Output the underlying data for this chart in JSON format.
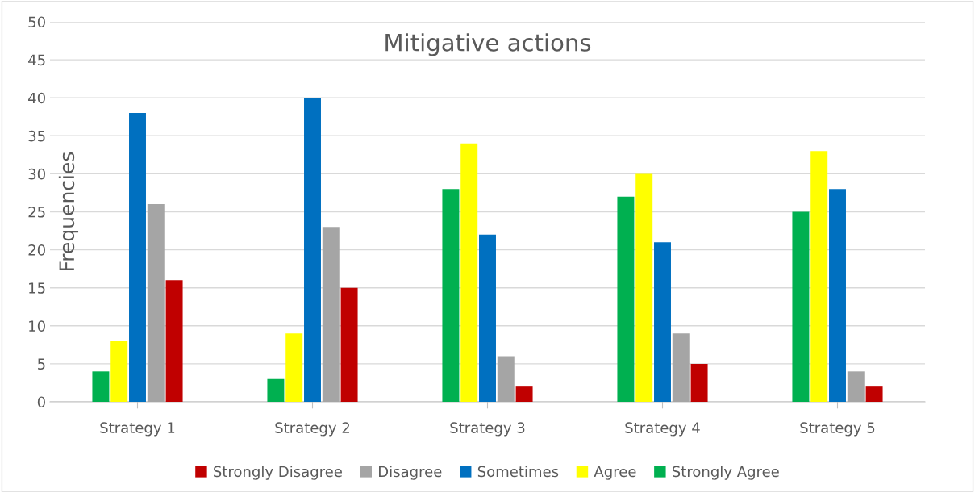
{
  "chart_data": {
    "type": "bar",
    "title": "Mitigative actions",
    "ylabel": "Frequencies",
    "categories": [
      "Strategy 1",
      "Strategy 2",
      "Strategy 3",
      "Strategy 4",
      "Strategy 5"
    ],
    "series": [
      {
        "name": "Strongly Agree",
        "color": "#00b050",
        "values": [
          4,
          3,
          28,
          27,
          25
        ]
      },
      {
        "name": "Agree",
        "color": "#ffff00",
        "values": [
          8,
          9,
          34,
          30,
          33
        ]
      },
      {
        "name": "Sometimes",
        "color": "#0070c0",
        "values": [
          38,
          40,
          22,
          21,
          28
        ]
      },
      {
        "name": "Disagree",
        "color": "#a5a5a5",
        "values": [
          26,
          23,
          6,
          9,
          4
        ]
      },
      {
        "name": "Strongly Disagree",
        "color": "#c00000",
        "values": [
          16,
          15,
          2,
          5,
          2
        ]
      }
    ],
    "ylim": [
      0,
      50
    ],
    "yticks": [
      0,
      5,
      10,
      15,
      20,
      25,
      30,
      35,
      40,
      45,
      50
    ],
    "grid": "y",
    "legend": "bottom"
  }
}
